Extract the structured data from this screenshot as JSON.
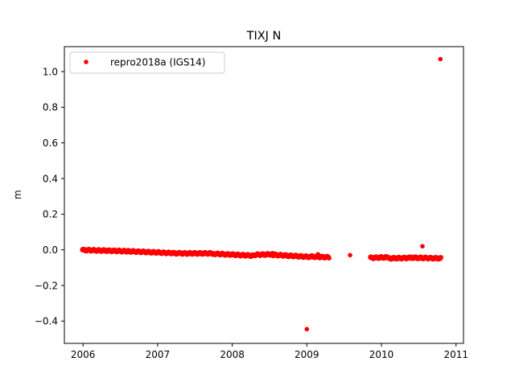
{
  "chart_data": {
    "type": "scatter",
    "title": "TIXJ N",
    "xlabel": "",
    "ylabel": "m",
    "xlim": [
      2005.75,
      2011.1
    ],
    "ylim": [
      -0.525,
      1.14
    ],
    "x_ticks": [
      2006,
      2007,
      2008,
      2009,
      2010,
      2011
    ],
    "x_tick_labels": [
      "2006",
      "2007",
      "2008",
      "2009",
      "2010",
      "2011"
    ],
    "y_ticks": [
      -0.4,
      -0.2,
      0.0,
      0.2,
      0.4,
      0.6,
      0.8,
      1.0
    ],
    "y_tick_labels": [
      "−0.4",
      "−0.2",
      "0.0",
      "0.2",
      "0.4",
      "0.6",
      "0.8",
      "1.0"
    ],
    "grid": false,
    "legend_position": "top-left",
    "series": [
      {
        "name": "repro2018a (IGS14)",
        "color": "#ff0000",
        "marker": "dot",
        "segments": [
          {
            "x_start": 2005.99,
            "x_end": 2006.6,
            "y_start": -0.001,
            "y_end": -0.008,
            "spacing": 0.004
          },
          {
            "x_start": 2006.6,
            "x_end": 2007.3,
            "y_start": -0.008,
            "y_end": -0.02,
            "spacing": 0.004
          },
          {
            "x_start": 2007.3,
            "x_end": 2007.75,
            "y_start": -0.02,
            "y_end": -0.02,
            "spacing": 0.004
          },
          {
            "x_start": 2007.75,
            "x_end": 2008.3,
            "y_start": -0.022,
            "y_end": -0.033,
            "spacing": 0.004
          },
          {
            "x_start": 2008.3,
            "x_end": 2008.55,
            "y_start": -0.028,
            "y_end": -0.025,
            "spacing": 0.004
          },
          {
            "x_start": 2008.55,
            "x_end": 2009.05,
            "y_start": -0.028,
            "y_end": -0.04,
            "spacing": 0.004
          },
          {
            "x_start": 2009.05,
            "x_end": 2009.3,
            "y_start": -0.038,
            "y_end": -0.042,
            "spacing": 0.004
          },
          {
            "x_start": 2009.85,
            "x_end": 2010.1,
            "y_start": -0.045,
            "y_end": -0.042,
            "spacing": 0.004
          },
          {
            "x_start": 2010.1,
            "x_end": 2010.4,
            "y_start": -0.048,
            "y_end": -0.045,
            "spacing": 0.004
          },
          {
            "x_start": 2010.4,
            "x_end": 2010.8,
            "y_start": -0.044,
            "y_end": -0.048,
            "spacing": 0.004
          }
        ],
        "points": [
          {
            "x": 2009.0,
            "y": -0.445
          },
          {
            "x": 2009.15,
            "y": -0.025
          },
          {
            "x": 2009.58,
            "y": -0.03
          },
          {
            "x": 2010.55,
            "y": 0.02
          },
          {
            "x": 2010.79,
            "y": 1.07
          }
        ]
      }
    ]
  }
}
